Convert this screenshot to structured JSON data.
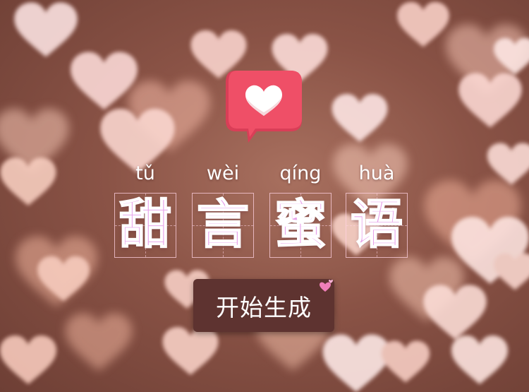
{
  "app": {
    "logo_icon": "heart-speech-bubble-icon",
    "accent_color": "#ef4f67",
    "title_color": "#e7a2ea"
  },
  "title": {
    "chars": [
      {
        "pinyin": "tǔ",
        "hanzi": "甜"
      },
      {
        "pinyin": "wèi",
        "hanzi": "言"
      },
      {
        "pinyin": "qíng",
        "hanzi": "蜜"
      },
      {
        "pinyin": "huà",
        "hanzi": "语"
      }
    ]
  },
  "start_button": {
    "label": "开始生成",
    "icon": "small-hearts-icon"
  }
}
